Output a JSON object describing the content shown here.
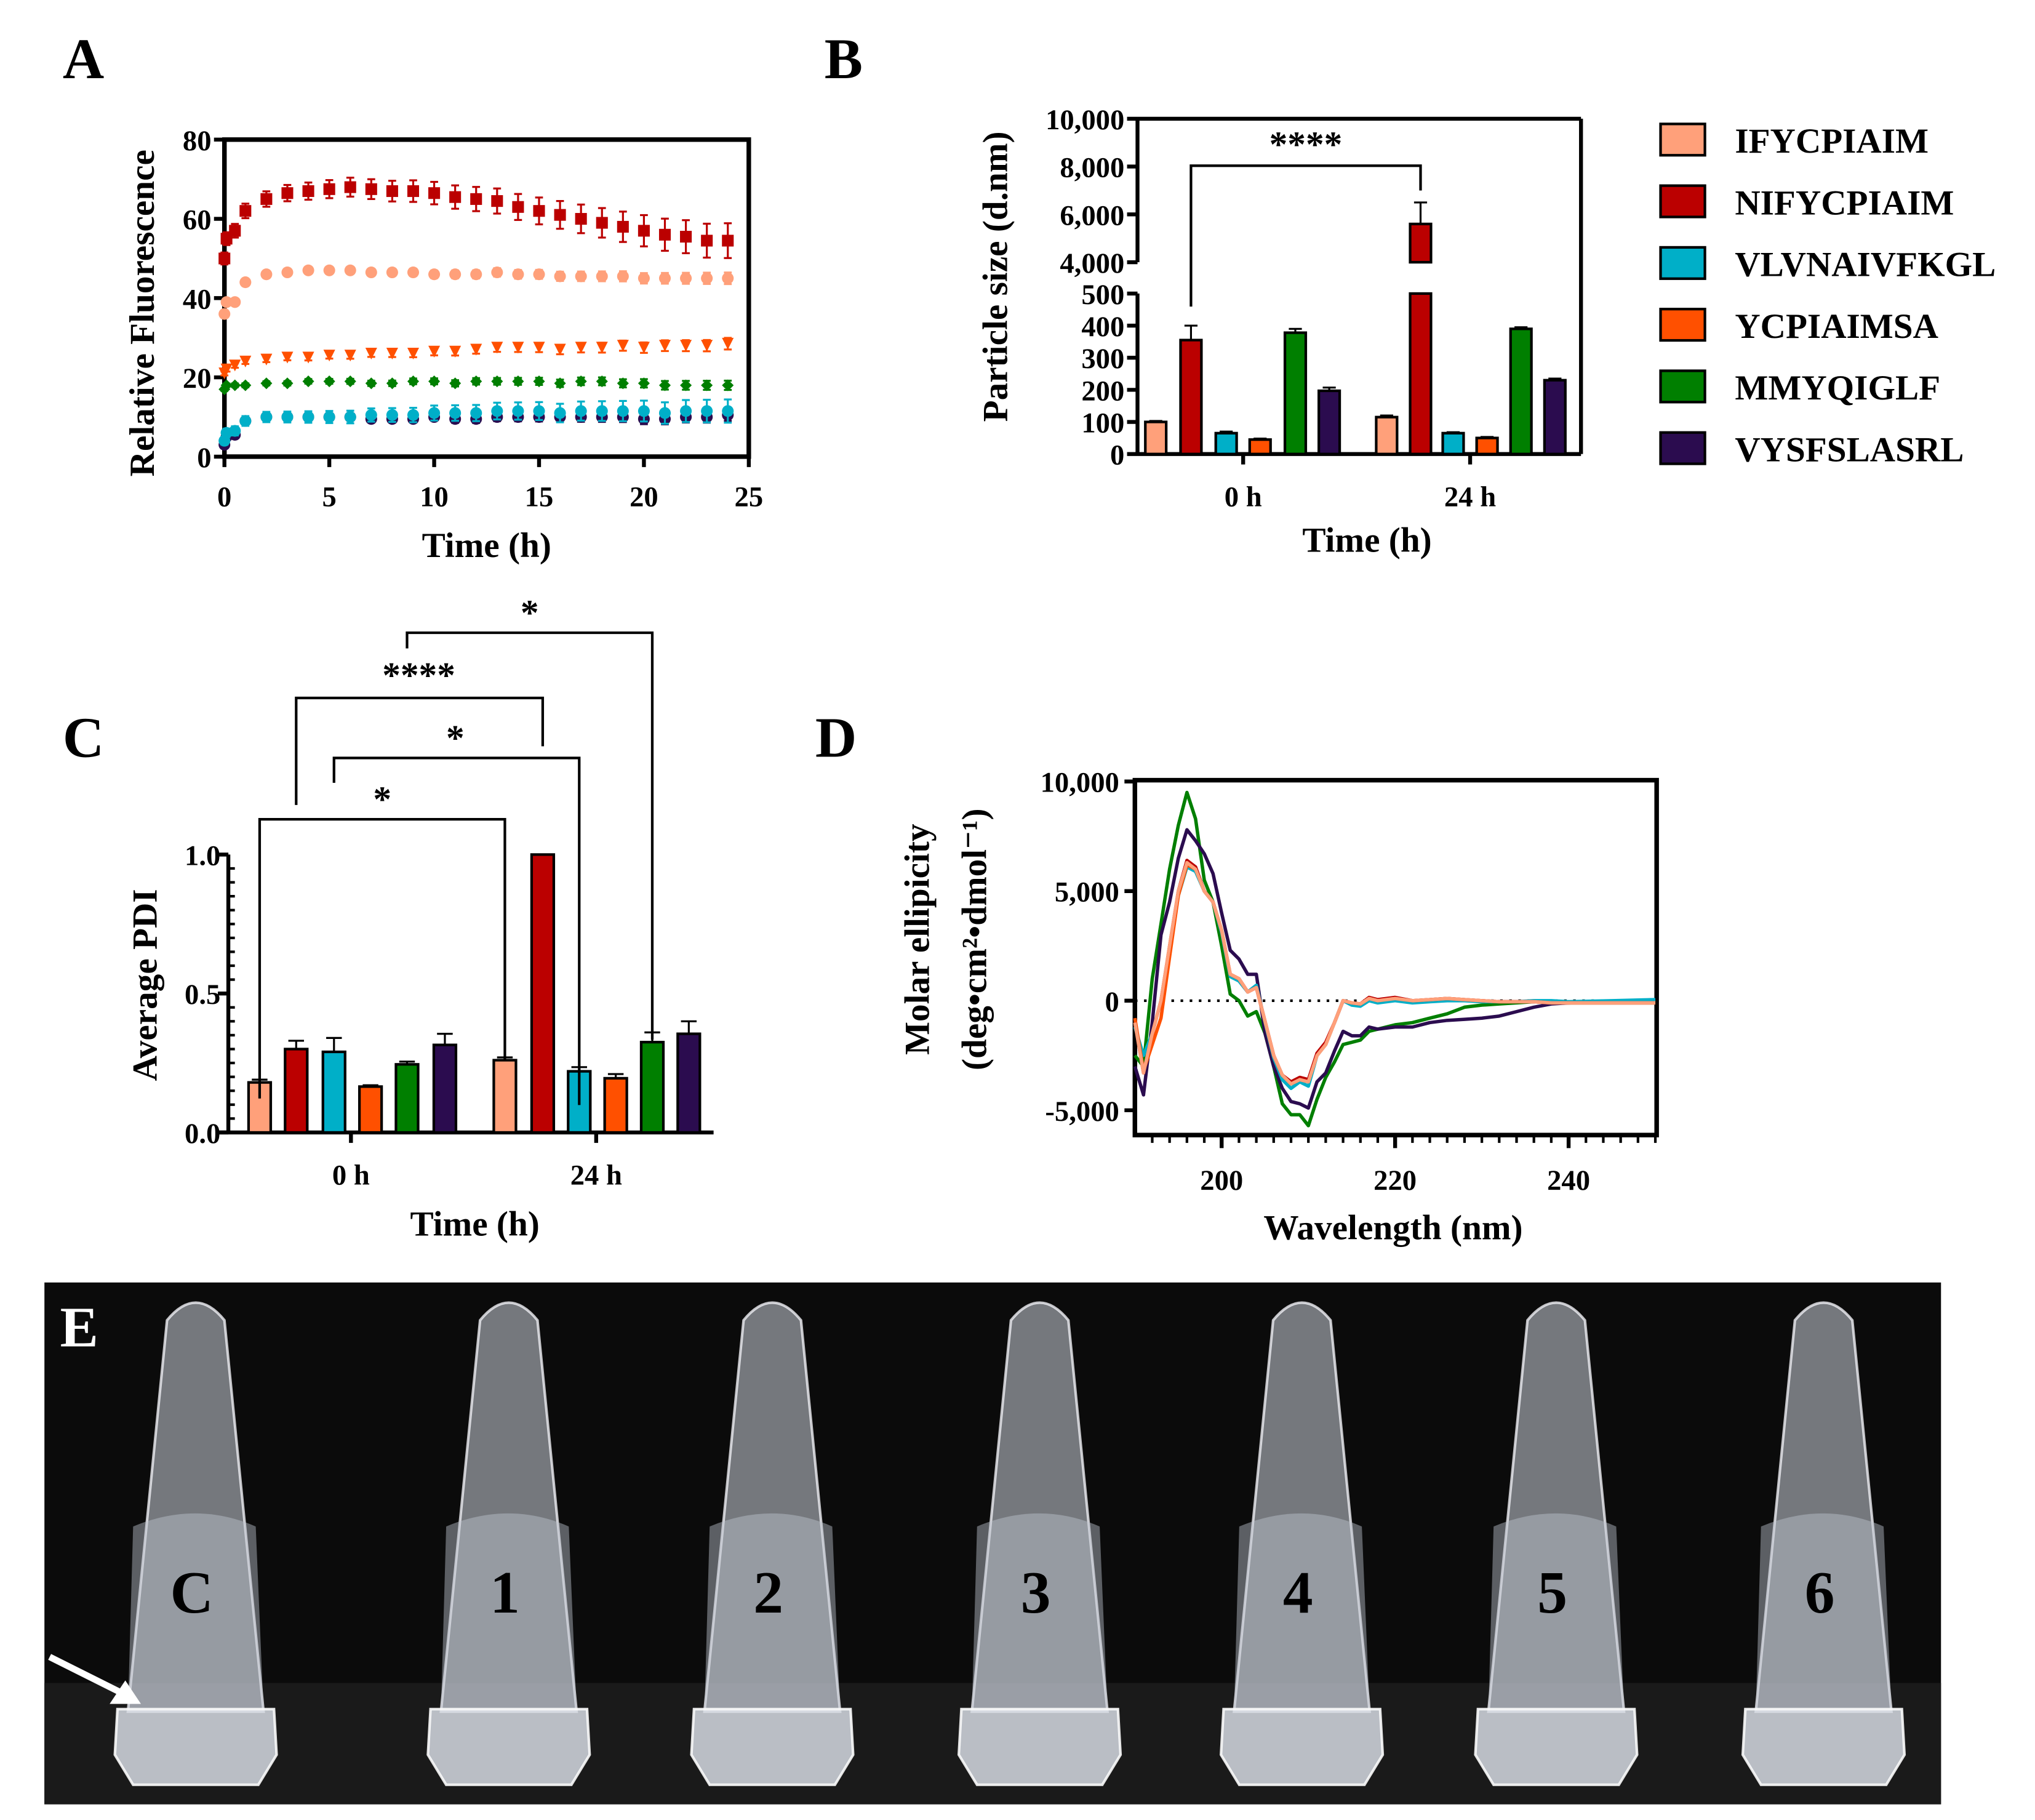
{
  "colors": {
    "IFYCPIAIM": "#FFA07A",
    "NIFYCPIAIM": "#BB0000",
    "VLVNAIVFKGL": "#00AFC8",
    "YCPIAIMSA": "#FF5000",
    "MMYQIGLF": "#007F00",
    "VYSFSLASRL": "#2B0C4F"
  },
  "panels": {
    "A": "A",
    "B": "B",
    "C": "C",
    "D": "D",
    "E": "E"
  },
  "legend": [
    "IFYCPIAIM",
    "NIFYCPIAIM",
    "VLVNAIVFKGL",
    "YCPIAIMSA",
    "MMYQIGLF",
    "VYSFSLASRL"
  ],
  "chart_data": [
    {
      "id": "A",
      "type": "scatter",
      "xlabel": "Time (h)",
      "ylabel": "Relative Fluorescence",
      "xlim": [
        0,
        25
      ],
      "ylim": [
        0,
        80
      ],
      "xticks": [
        "0",
        "5",
        "10",
        "15",
        "20",
        "25"
      ],
      "yticks": [
        "0",
        "20",
        "40",
        "60",
        "80"
      ],
      "x": [
        0,
        0.1,
        0.5,
        1,
        2,
        3,
        4,
        5,
        6,
        7,
        8,
        9,
        10,
        11,
        12,
        13,
        14,
        15,
        16,
        17,
        18,
        19,
        20,
        21,
        22,
        23,
        24
      ],
      "series": [
        {
          "name": "NIFYCPIAIM",
          "marker": "square",
          "err": 3,
          "values": [
            50,
            55,
            57,
            62,
            65,
            66.5,
            67,
            67.5,
            68,
            67.5,
            67,
            67,
            66.5,
            65.5,
            65,
            64.5,
            63,
            62,
            61,
            60,
            59,
            58,
            57,
            56,
            55.5,
            54.5,
            54.5
          ]
        },
        {
          "name": "IFYCPIAIM",
          "marker": "circle",
          "err": 1,
          "values": [
            36,
            39,
            39,
            44,
            46,
            46.5,
            47,
            47,
            47,
            46.5,
            46.5,
            46.5,
            46,
            46,
            46,
            46.5,
            46,
            46,
            45.5,
            45.5,
            45.5,
            45.5,
            45,
            45,
            45,
            45,
            45
          ]
        },
        {
          "name": "YCPIAIMSA",
          "marker": "triangle-down",
          "err": 1,
          "values": [
            21,
            22,
            23,
            24,
            24.5,
            25,
            25,
            25.5,
            25.5,
            26,
            26,
            26,
            26.5,
            26.5,
            27,
            27.5,
            27.5,
            27.5,
            27,
            27.5,
            27.5,
            28,
            27.5,
            28,
            28,
            28,
            28.5
          ]
        },
        {
          "name": "MMYQIGLF",
          "marker": "diamond",
          "err": 0.8,
          "values": [
            17,
            18,
            18,
            18,
            18.5,
            18.5,
            19,
            19,
            19,
            18.5,
            18.5,
            19,
            19,
            18.5,
            19,
            19,
            19,
            19,
            18.5,
            19,
            19,
            18.5,
            18.5,
            18,
            18,
            18,
            18
          ]
        },
        {
          "name": "VYSFSLASRL",
          "marker": "circle",
          "err": 1,
          "values": [
            3,
            5,
            5.5,
            9,
            10,
            10,
            10,
            10,
            10,
            9.5,
            9.5,
            9.5,
            10,
            9.5,
            9.5,
            10,
            10,
            10,
            10,
            10,
            10,
            10,
            9.5,
            9.5,
            10,
            10,
            10.5
          ]
        },
        {
          "name": "VLVNAIVFKGL",
          "marker": "circle",
          "err": 2,
          "values": [
            4,
            6,
            6.5,
            9,
            10,
            10,
            10,
            10,
            10,
            10.5,
            10.5,
            10.5,
            11,
            11,
            11,
            11.5,
            11.5,
            11.5,
            11,
            11.5,
            11.5,
            11.5,
            11.5,
            11,
            11.5,
            11.5,
            11.5
          ]
        }
      ]
    },
    {
      "id": "B",
      "type": "bar",
      "xlabel": "Time (h)",
      "ylabel": "Particle size (d.nm)",
      "categories": [
        "0 h",
        "24 h"
      ],
      "ylim": [
        0,
        10000
      ],
      "axis_break": [
        500,
        4000
      ],
      "yticks_lower": [
        "0",
        "100",
        "200",
        "300",
        "400",
        "500"
      ],
      "yticks_upper": [
        "4,000",
        "6,000",
        "8,000",
        "10,000"
      ],
      "series": [
        {
          "name": "IFYCPIAIM",
          "values": [
            100,
            115
          ],
          "err": [
            3,
            5
          ]
        },
        {
          "name": "NIFYCPIAIM",
          "values": [
            355,
            5600
          ],
          "err": [
            45,
            900
          ]
        },
        {
          "name": "VLVNAIVFKGL",
          "values": [
            65,
            65
          ],
          "err": [
            5,
            3
          ]
        },
        {
          "name": "YCPIAIMSA",
          "values": [
            45,
            50
          ],
          "err": [
            3,
            3
          ]
        },
        {
          "name": "MMYQIGLF",
          "values": [
            378,
            390
          ],
          "err": [
            12,
            5
          ]
        },
        {
          "name": "VYSFSLASRL",
          "values": [
            197,
            230
          ],
          "err": [
            10,
            5
          ]
        }
      ],
      "significance": [
        {
          "from": "NIFYCPIAIM 0 h",
          "to": "NIFYCPIAIM 24 h",
          "label": "****"
        }
      ]
    },
    {
      "id": "C",
      "type": "bar",
      "xlabel": "Time (h)",
      "ylabel": "Average PDI",
      "categories": [
        "0 h",
        "24 h"
      ],
      "ylim": [
        0,
        1.0
      ],
      "yticks": [
        "0.0",
        "0.5",
        "1.0"
      ],
      "series": [
        {
          "name": "IFYCPIAIM",
          "values": [
            0.18,
            0.26
          ],
          "err": [
            0.01,
            0.01
          ]
        },
        {
          "name": "NIFYCPIAIM",
          "values": [
            0.3,
            1.0
          ],
          "err": [
            0.03,
            0
          ]
        },
        {
          "name": "VLVNAIVFKGL",
          "values": [
            0.29,
            0.22
          ],
          "err": [
            0.05,
            0.015
          ]
        },
        {
          "name": "YCPIAIMSA",
          "values": [
            0.165,
            0.195
          ],
          "err": [
            0.005,
            0.015
          ]
        },
        {
          "name": "MMYQIGLF",
          "values": [
            0.245,
            0.325
          ],
          "err": [
            0.01,
            0.035
          ]
        },
        {
          "name": "VYSFSLASRL",
          "values": [
            0.315,
            0.355
          ],
          "err": [
            0.04,
            0.045
          ]
        }
      ],
      "significance": [
        {
          "from": "IFYCPIAIM 0 h",
          "to": "IFYCPIAIM 24 h",
          "label": "*"
        },
        {
          "from": "VLVNAIVFKGL 0 h",
          "to": "VLVNAIVFKGL 24 h",
          "label": "*"
        },
        {
          "from": "NIFYCPIAIM 0 h",
          "to": "NIFYCPIAIM 24 h",
          "label": "****"
        },
        {
          "from": "MMYQIGLF 0 h",
          "to": "MMYQIGLF 24 h",
          "label": "*"
        }
      ]
    },
    {
      "id": "D",
      "type": "line",
      "xlabel": "Wavelength (nm)",
      "ylabel": [
        "Molar ellipicity",
        "(deg•cm²•dmol⁻¹)"
      ],
      "xlim": [
        190,
        250
      ],
      "ylim": [
        -6000,
        10000
      ],
      "xticks": [
        "200",
        "220",
        "240"
      ],
      "yticks": [
        "-5,000",
        "0",
        "5,000",
        "10,000"
      ],
      "x": [
        190,
        191,
        192,
        193,
        194,
        195,
        196,
        197,
        198,
        199,
        200,
        201,
        202,
        203,
        204,
        205,
        206,
        207,
        208,
        209,
        210,
        211,
        212,
        213,
        214,
        215,
        216,
        217,
        218,
        220,
        222,
        224,
        226,
        228,
        230,
        232,
        234,
        236,
        238,
        240,
        245,
        250
      ],
      "series": [
        {
          "name": "MMYQIGLF",
          "values": [
            -2500,
            -3000,
            1000,
            3500,
            6000,
            8000,
            9500,
            8300,
            5500,
            4500,
            2500,
            300,
            0,
            -700,
            -500,
            -1500,
            -3000,
            -4700,
            -5200,
            -5200,
            -5700,
            -4500,
            -3500,
            -2800,
            -2000,
            -1900,
            -1800,
            -1400,
            -1300,
            -1100,
            -1000,
            -800,
            -600,
            -300,
            -200,
            -150,
            -100,
            -50,
            -50,
            -100,
            -100,
            -100
          ]
        },
        {
          "name": "VYSFSLASRL",
          "values": [
            -3000,
            -4300,
            -1000,
            3000,
            4500,
            6500,
            7800,
            7300,
            6700,
            5800,
            4000,
            2300,
            1900,
            1200,
            1200,
            -1500,
            -3000,
            -4000,
            -4600,
            -4700,
            -4900,
            -3700,
            -3300,
            -2300,
            -1400,
            -1600,
            -1600,
            -1200,
            -1300,
            -1200,
            -1200,
            -1000,
            -900,
            -850,
            -800,
            -700,
            -500,
            -300,
            -150,
            -100,
            -50,
            50
          ]
        },
        {
          "name": "VLVNAIVFKGL",
          "values": [
            -1200,
            -2500,
            -1500,
            0,
            2300,
            4800,
            6100,
            5900,
            5000,
            4500,
            3100,
            1100,
            900,
            400,
            700,
            -1000,
            -2600,
            -3600,
            -4000,
            -3700,
            -3900,
            -2500,
            -2000,
            -1000,
            0,
            -200,
            -250,
            0,
            -100,
            0,
            -100,
            -50,
            0,
            0,
            -50,
            -50,
            -50,
            0,
            0,
            -50,
            0,
            50
          ]
        },
        {
          "name": "YCPIAIMSA",
          "values": [
            -800,
            -3200,
            -2000,
            -800,
            2000,
            4800,
            6200,
            6000,
            5000,
            4500,
            3200,
            1200,
            1000,
            400,
            600,
            -950,
            -2500,
            -3400,
            -3800,
            -3600,
            -3700,
            -2500,
            -2000,
            -1000,
            0,
            -100,
            -150,
            100,
            0,
            100,
            0,
            50,
            100,
            50,
            0,
            -50,
            -50,
            -50,
            -100,
            -100,
            -100,
            -100
          ]
        },
        {
          "name": "NIFYCPIAIM",
          "values": [
            -1000,
            -3300,
            -1500,
            0,
            2500,
            5000,
            6400,
            6100,
            5000,
            4500,
            3200,
            1200,
            1000,
            400,
            600,
            -950,
            -2500,
            -3400,
            -3700,
            -3500,
            -3600,
            -2400,
            -1900,
            -1000,
            0,
            -100,
            -150,
            150,
            50,
            150,
            0,
            50,
            100,
            50,
            0,
            -50,
            -50,
            -50,
            -100,
            -100,
            -100,
            -100
          ]
        },
        {
          "name": "IFYCPIAIM",
          "values": [
            -1000,
            -3300,
            -1500,
            0,
            2500,
            5000,
            6300,
            6000,
            5000,
            4500,
            3200,
            1200,
            1000,
            400,
            600,
            -950,
            -2500,
            -3400,
            -3800,
            -3600,
            -3700,
            -2500,
            -2000,
            -1000,
            0,
            -100,
            -150,
            100,
            0,
            100,
            0,
            50,
            100,
            50,
            0,
            -50,
            -50,
            -50,
            -100,
            -100,
            -100,
            -100
          ]
        }
      ]
    }
  ],
  "photo": {
    "tube_labels": [
      "C",
      "1",
      "2",
      "3",
      "4",
      "5",
      "6"
    ]
  }
}
